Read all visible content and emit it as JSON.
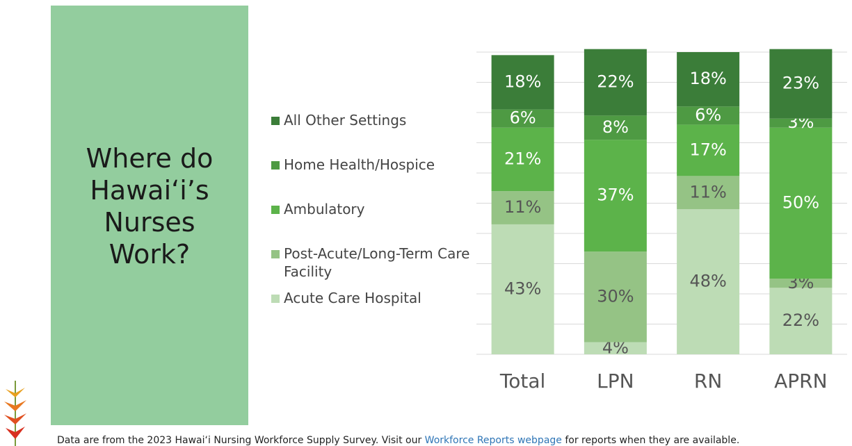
{
  "title": "Where do Hawai‘i’s Nurses Work?",
  "chart_data": {
    "type": "stacked_bar",
    "categories": [
      "Total",
      "LPN",
      "RN",
      "APRN"
    ],
    "series": [
      {
        "name": "Acute Care Hospital",
        "color": "#bddcb5",
        "values": [
          43,
          4,
          48,
          22
        ],
        "value_labels": [
          "43%",
          "4%",
          "48%",
          "22%"
        ]
      },
      {
        "name": "Post-Acute/Long-Term Care Facility",
        "color": "#95c385",
        "values": [
          11,
          30,
          11,
          3
        ],
        "value_labels": [
          "11%",
          "30%",
          "11%",
          "3%"
        ]
      },
      {
        "name": "Ambulatory",
        "color": "#5cb34a",
        "values": [
          21,
          37,
          17,
          50
        ],
        "value_labels": [
          "21%",
          "37%",
          "17%",
          "50%"
        ]
      },
      {
        "name": "Home Health/Hospice",
        "color": "#4e9a43",
        "values": [
          6,
          8,
          6,
          3
        ],
        "value_labels": [
          "6%",
          "8%",
          "6%",
          "3%"
        ]
      },
      {
        "name": "All Other Settings",
        "color": "#3b7d39",
        "values": [
          18,
          22,
          18,
          23
        ],
        "value_labels": [
          "18%",
          "22%",
          "18%",
          "23%"
        ]
      }
    ],
    "ylim": [
      0,
      100
    ],
    "yticks": [
      0,
      10,
      20,
      30,
      40,
      50,
      60,
      70,
      80,
      90,
      100
    ],
    "grid": true
  },
  "footer": {
    "text_before": "Data are from the 2023 Hawai‘i Nursing Workforce Supply Survey. Visit our ",
    "link": "Workforce Reports webpage",
    "text_after": " for reports when they are available."
  }
}
